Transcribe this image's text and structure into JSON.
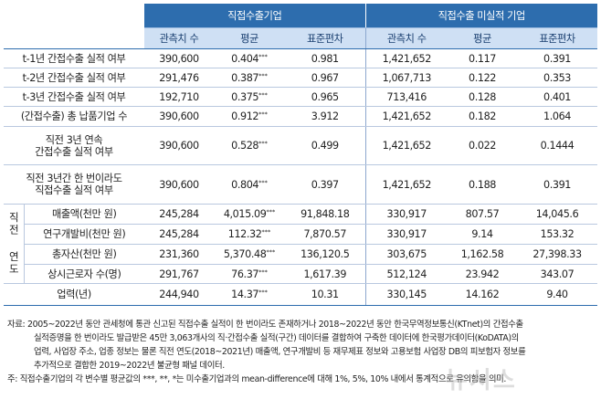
{
  "header": {
    "group_a": "직접수출기업",
    "group_b": "직접수출 미실적 기업",
    "col_obs": "관측치 수",
    "col_mean": "평균",
    "col_sd": "표준편차"
  },
  "rows": [
    {
      "label": "t-1년 간접수출 실적 여부",
      "a_n": "390,600",
      "a_mean": "0.404",
      "a_sig": "***",
      "a_sd": "0.981",
      "b_n": "1,421,652",
      "b_mean": "0.117",
      "b_sd": "0.391"
    },
    {
      "label": "t-2년 간접수출 실적 여부",
      "a_n": "291,476",
      "a_mean": "0.387",
      "a_sig": "***",
      "a_sd": "0.967",
      "b_n": "1,067,713",
      "b_mean": "0.122",
      "b_sd": "0.353"
    },
    {
      "label": "t-3년 간접수출 실적 여부",
      "a_n": "192,710",
      "a_mean": "0.375",
      "a_sig": "***",
      "a_sd": "0.965",
      "b_n": "713,416",
      "b_mean": "0.128",
      "b_sd": "0.401"
    },
    {
      "label": "(간접수출) 총 납품기업 수",
      "a_n": "390,600",
      "a_mean": "0.912",
      "a_sig": "***",
      "a_sd": "3.912",
      "b_n": "1,421,652",
      "b_mean": "0.182",
      "b_sd": "1.064"
    },
    {
      "label_l1": "직전 3년 연속",
      "label_l2": "간접수출 실적 여부",
      "a_n": "390,600",
      "a_mean": "0.528",
      "a_sig": "***",
      "a_sd": "0.499",
      "b_n": "1,421,652",
      "b_mean": "0.022",
      "b_sd": "0.1444"
    },
    {
      "label_l1": "직전 3년간 한 번이라도",
      "label_l2": "직접수출 실적 여부",
      "a_n": "390,600",
      "a_mean": "0.804",
      "a_sig": "***",
      "a_sd": "0.397",
      "b_n": "1,421,652",
      "b_mean": "0.188",
      "b_sd": "0.391"
    }
  ],
  "side_label": "직전 연도",
  "side_rows": [
    {
      "label": "매출액(천만 원)",
      "a_n": "245,284",
      "a_mean": "4,015.09",
      "a_sig": "***",
      "a_sd": "91,848.18",
      "b_n": "330,917",
      "b_mean": "807.57",
      "b_sd": "14,045.6"
    },
    {
      "label": "연구개발비(천만 원)",
      "a_n": "245,284",
      "a_mean": "112.32",
      "a_sig": "***",
      "a_sd": "7,870.57",
      "b_n": "330,917",
      "b_mean": "9.14",
      "b_sd": "153.32"
    },
    {
      "label": "총자산(천만 원)",
      "a_n": "231,360",
      "a_mean": "5,370.48",
      "a_sig": "***",
      "a_sd": "136,120.5",
      "b_n": "303,675",
      "b_mean": "1,162.58",
      "b_sd": "27,398.33"
    },
    {
      "label": "상시근로자 수(명)",
      "a_n": "291,767",
      "a_mean": "76.37",
      "a_sig": "***",
      "a_sd": "1,617.39",
      "b_n": "512,124",
      "b_mean": "23.942",
      "b_sd": "343.07"
    }
  ],
  "last_row": {
    "label": "업력(년)",
    "a_n": "244,940",
    "a_mean": "14.37",
    "a_sig": "***",
    "a_sd": "10.31",
    "b_n": "330,145",
    "b_mean": "14.162",
    "b_sd": "9.40"
  },
  "notes": {
    "source_1": "자료: 2005~2022년 동안 관세청에 통관 신고된 직접수출 실적이 한 번이라도 존재하거나 2018~2022년 동안 한국무역정보통신(KTnet)의 간접수출",
    "source_2": "실적증명을 한 번이라도 발급받은 45만 3,063개사의 직·간접수출 실적(구간) 데이터를 결합하여 구축한 데이터에 한국평가데이터(KoDATA)의",
    "source_3": "업력, 사업장 주소, 업종 정보는 물론 직전 연도(2018~2021년) 매출액, 연구개발비 등 재무제표 정보와 고용보험 사업장 DB의 피보험자 정보를",
    "source_4": "추가적으로 결합한 2019~2022년 불균형 패널 데이터.",
    "note": "주: 직접수출기업의 각 변수별 평균값의 ***, **, *는 미수출기업과의 mean-difference에 대해 1%, 5%, 10% 내에서 통계적으로 유의함을 의미."
  },
  "watermark": "뉴시스"
}
